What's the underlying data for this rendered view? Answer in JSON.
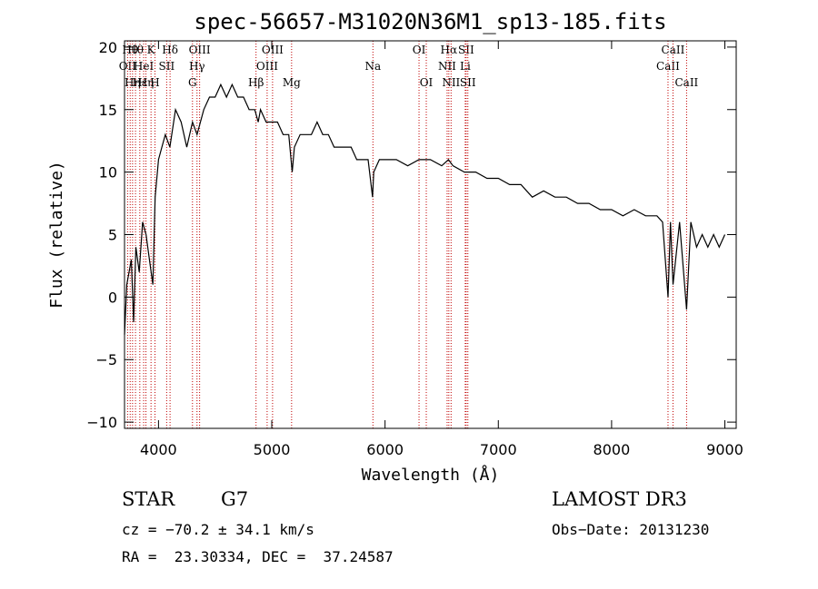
{
  "chart_data": {
    "type": "line",
    "title": "spec-56657-M31020N36M1_sp13-185.fits",
    "xlabel": "Wavelength (Å)",
    "ylabel": "Flux (relative)",
    "xlim": [
      3700,
      9100
    ],
    "ylim": [
      -10.5,
      20.5
    ],
    "xticks": [
      4000,
      5000,
      6000,
      7000,
      8000,
      9000
    ],
    "yticks": [
      -10,
      -5,
      0,
      5,
      10,
      15,
      20
    ],
    "grid": false,
    "line_color": "#000000",
    "marker_color": "#c00000",
    "series": [
      {
        "x": [
          3700,
          3720,
          3740,
          3760,
          3780,
          3800,
          3830,
          3860,
          3890,
          3920,
          3950,
          3970,
          4000,
          4030,
          4060,
          4100,
          4150,
          4200,
          4250,
          4300,
          4340,
          4400,
          4450,
          4500,
          4550,
          4600,
          4650,
          4700,
          4750,
          4800,
          4850,
          4880,
          4900,
          4950,
          5000,
          5050,
          5100,
          5150,
          5180,
          5200,
          5250,
          5300,
          5350,
          5400,
          5450,
          5500,
          5550,
          5600,
          5650,
          5700,
          5750,
          5800,
          5850,
          5890,
          5900,
          5950,
          6000,
          6100,
          6200,
          6300,
          6400,
          6500,
          6560,
          6600,
          6700,
          6800,
          6900,
          7000,
          7100,
          7200,
          7250,
          7300,
          7400,
          7500,
          7600,
          7700,
          7800,
          7900,
          8000,
          8100,
          8200,
          8300,
          8400,
          8450,
          8498,
          8520,
          8542,
          8600,
          8662,
          8700,
          8750,
          8800,
          8850,
          8900,
          8950,
          9000
        ],
        "y": [
          -3,
          1,
          2,
          3,
          -2,
          4,
          2,
          6,
          5,
          3,
          1,
          8,
          11,
          12,
          13,
          12,
          15,
          14,
          12,
          14,
          13,
          15,
          16,
          16,
          17,
          16,
          17,
          16,
          16,
          15,
          15,
          14,
          15,
          14,
          14,
          14,
          13,
          13,
          10,
          12,
          13,
          13,
          13,
          14,
          13,
          13,
          12,
          12,
          12,
          12,
          11,
          11,
          11,
          8,
          10,
          11,
          11,
          11,
          10.5,
          11,
          11,
          10.5,
          11,
          10.5,
          10,
          10,
          9.5,
          9.5,
          9,
          9,
          8.5,
          8,
          8.5,
          8,
          8,
          7.5,
          7.5,
          7,
          7,
          6.5,
          7,
          6.5,
          6.5,
          6,
          0,
          6,
          1,
          6,
          -1,
          6,
          4,
          5,
          4,
          5,
          4,
          5
        ]
      }
    ],
    "lines": [
      {
        "x": 3727,
        "label": "OII",
        "row": 1
      },
      {
        "x": 3750,
        "label": "Hθ",
        "row": 0
      },
      {
        "x": 3771,
        "label": "Hη",
        "row": 2
      },
      {
        "x": 3797,
        "label": "Hθ",
        "row": 0
      },
      {
        "x": 3835,
        "label": "Hε",
        "row": 2
      },
      {
        "x": 3869,
        "label": "HeI",
        "row": 1
      },
      {
        "x": 3889,
        "label": "Hη",
        "row": 2
      },
      {
        "x": 3934,
        "label": "K",
        "row": 0
      },
      {
        "x": 3969,
        "label": "H",
        "row": 2
      },
      {
        "x": 4072,
        "label": "SII",
        "row": 1
      },
      {
        "x": 4102,
        "label": "Hδ",
        "row": 0
      },
      {
        "x": 4300,
        "label": "G",
        "row": 2
      },
      {
        "x": 4340,
        "label": "Hγ",
        "row": 1
      },
      {
        "x": 4363,
        "label": "OIII",
        "row": 0
      },
      {
        "x": 4861,
        "label": "Hβ",
        "row": 2
      },
      {
        "x": 4959,
        "label": "OIII",
        "row": 1
      },
      {
        "x": 5007,
        "label": "OIII",
        "row": 0
      },
      {
        "x": 5175,
        "label": "Mg",
        "row": 2
      },
      {
        "x": 5893,
        "label": "Na",
        "row": 1
      },
      {
        "x": 6300,
        "label": "OI",
        "row": 0
      },
      {
        "x": 6364,
        "label": "OI",
        "row": 2
      },
      {
        "x": 6548,
        "label": "NII",
        "row": 1
      },
      {
        "x": 6563,
        "label": "Hα",
        "row": 0
      },
      {
        "x": 6583,
        "label": "NII",
        "row": 2
      },
      {
        "x": 6708,
        "label": "Li",
        "row": 1
      },
      {
        "x": 6716,
        "label": "SII",
        "row": 0
      },
      {
        "x": 6731,
        "label": "SII",
        "row": 2
      },
      {
        "x": 8498,
        "label": "CaII",
        "row": 1
      },
      {
        "x": 8542,
        "label": "CaII",
        "row": 0
      },
      {
        "x": 8662,
        "label": "CaII",
        "row": 2
      }
    ]
  },
  "info": {
    "class": "STAR",
    "subclass": "G7",
    "survey": "LAMOST DR3",
    "cz": "cz = −70.2 ± 34.1 km/s",
    "obs_date": "Obs−Date: 20131230",
    "coords": "RA =  23.30334, DEC =  37.24587"
  }
}
